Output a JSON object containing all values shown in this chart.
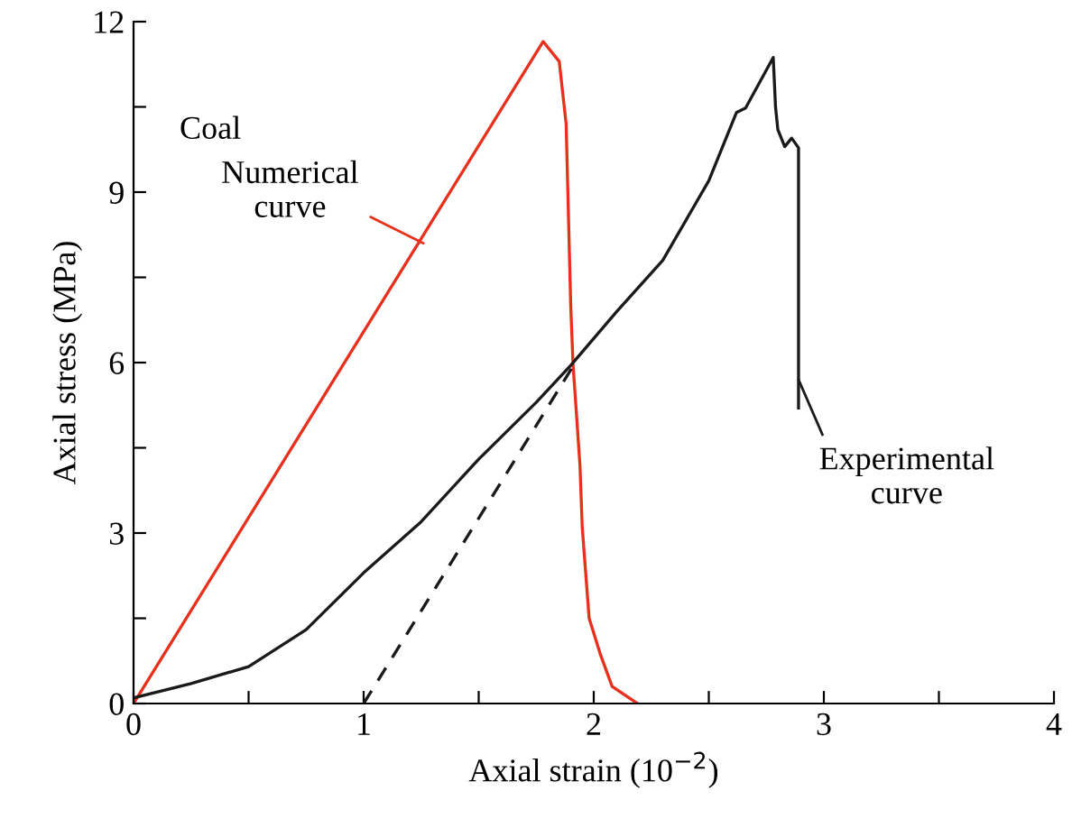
{
  "chart_data": {
    "type": "line",
    "xlabel": "Axial strain (10$^{−2}$)",
    "ylabel": "Axial stress (MPa)",
    "xlim": [
      0,
      4
    ],
    "ylim": [
      0,
      12
    ],
    "xticks": [
      0,
      {
        "value": 0.5,
        "label": null
      },
      1,
      {
        "value": 1.5,
        "label": null
      },
      2,
      {
        "value": 2.5,
        "label": null
      },
      3,
      {
        "value": 3.5,
        "label": null
      },
      4
    ],
    "yticks": [
      0,
      {
        "value": 1.5,
        "label": null
      },
      3,
      {
        "value": 4.5,
        "label": null
      },
      6,
      {
        "value": 7.5,
        "label": null
      },
      9,
      {
        "value": 10.5,
        "label": null
      },
      12
    ],
    "grid": false,
    "legend": false,
    "marker": "none",
    "series": [
      {
        "color": "#e8301c",
        "line_style": "solid",
        "x": [
          0,
          1.78,
          1.85,
          1.88,
          1.9,
          1.91,
          1.94,
          1.95,
          1.98,
          2.03,
          2.08,
          2.19
        ],
        "values": [
          0,
          11.65,
          11.3,
          10.2,
          7.0,
          5.97,
          4.2,
          3.1,
          1.5,
          0.85,
          0.3,
          0
        ]
      },
      {
        "color": "#1a1a1a",
        "line_style": "solid",
        "x": [
          0,
          0.25,
          0.5,
          0.75,
          1.0,
          1.25,
          1.5,
          1.75,
          1.9,
          2.1,
          2.3,
          2.5,
          2.62,
          2.66,
          2.78,
          2.79,
          2.8,
          2.83,
          2.86,
          2.89,
          2.89
        ],
        "values": [
          0.1,
          0.35,
          0.65,
          1.3,
          2.3,
          3.2,
          4.3,
          5.3,
          5.95,
          6.9,
          7.8,
          9.2,
          10.4,
          10.48,
          11.37,
          10.5,
          10.1,
          9.8,
          9.95,
          9.78,
          5.2
        ]
      },
      {
        "color": "#1a1a1a",
        "line_style": "dashed",
        "x": [
          1.0,
          1.92
        ],
        "values": [
          0,
          6.0
        ]
      }
    ],
    "annotations": [
      {
        "text": "Coal"
      },
      {
        "text": "Numerical\ncurve",
        "x": 1.26,
        "y": 8.1
      },
      {
        "text": "Experimental\ncurve",
        "x": 2.89,
        "y": 5.7
      }
    ]
  }
}
